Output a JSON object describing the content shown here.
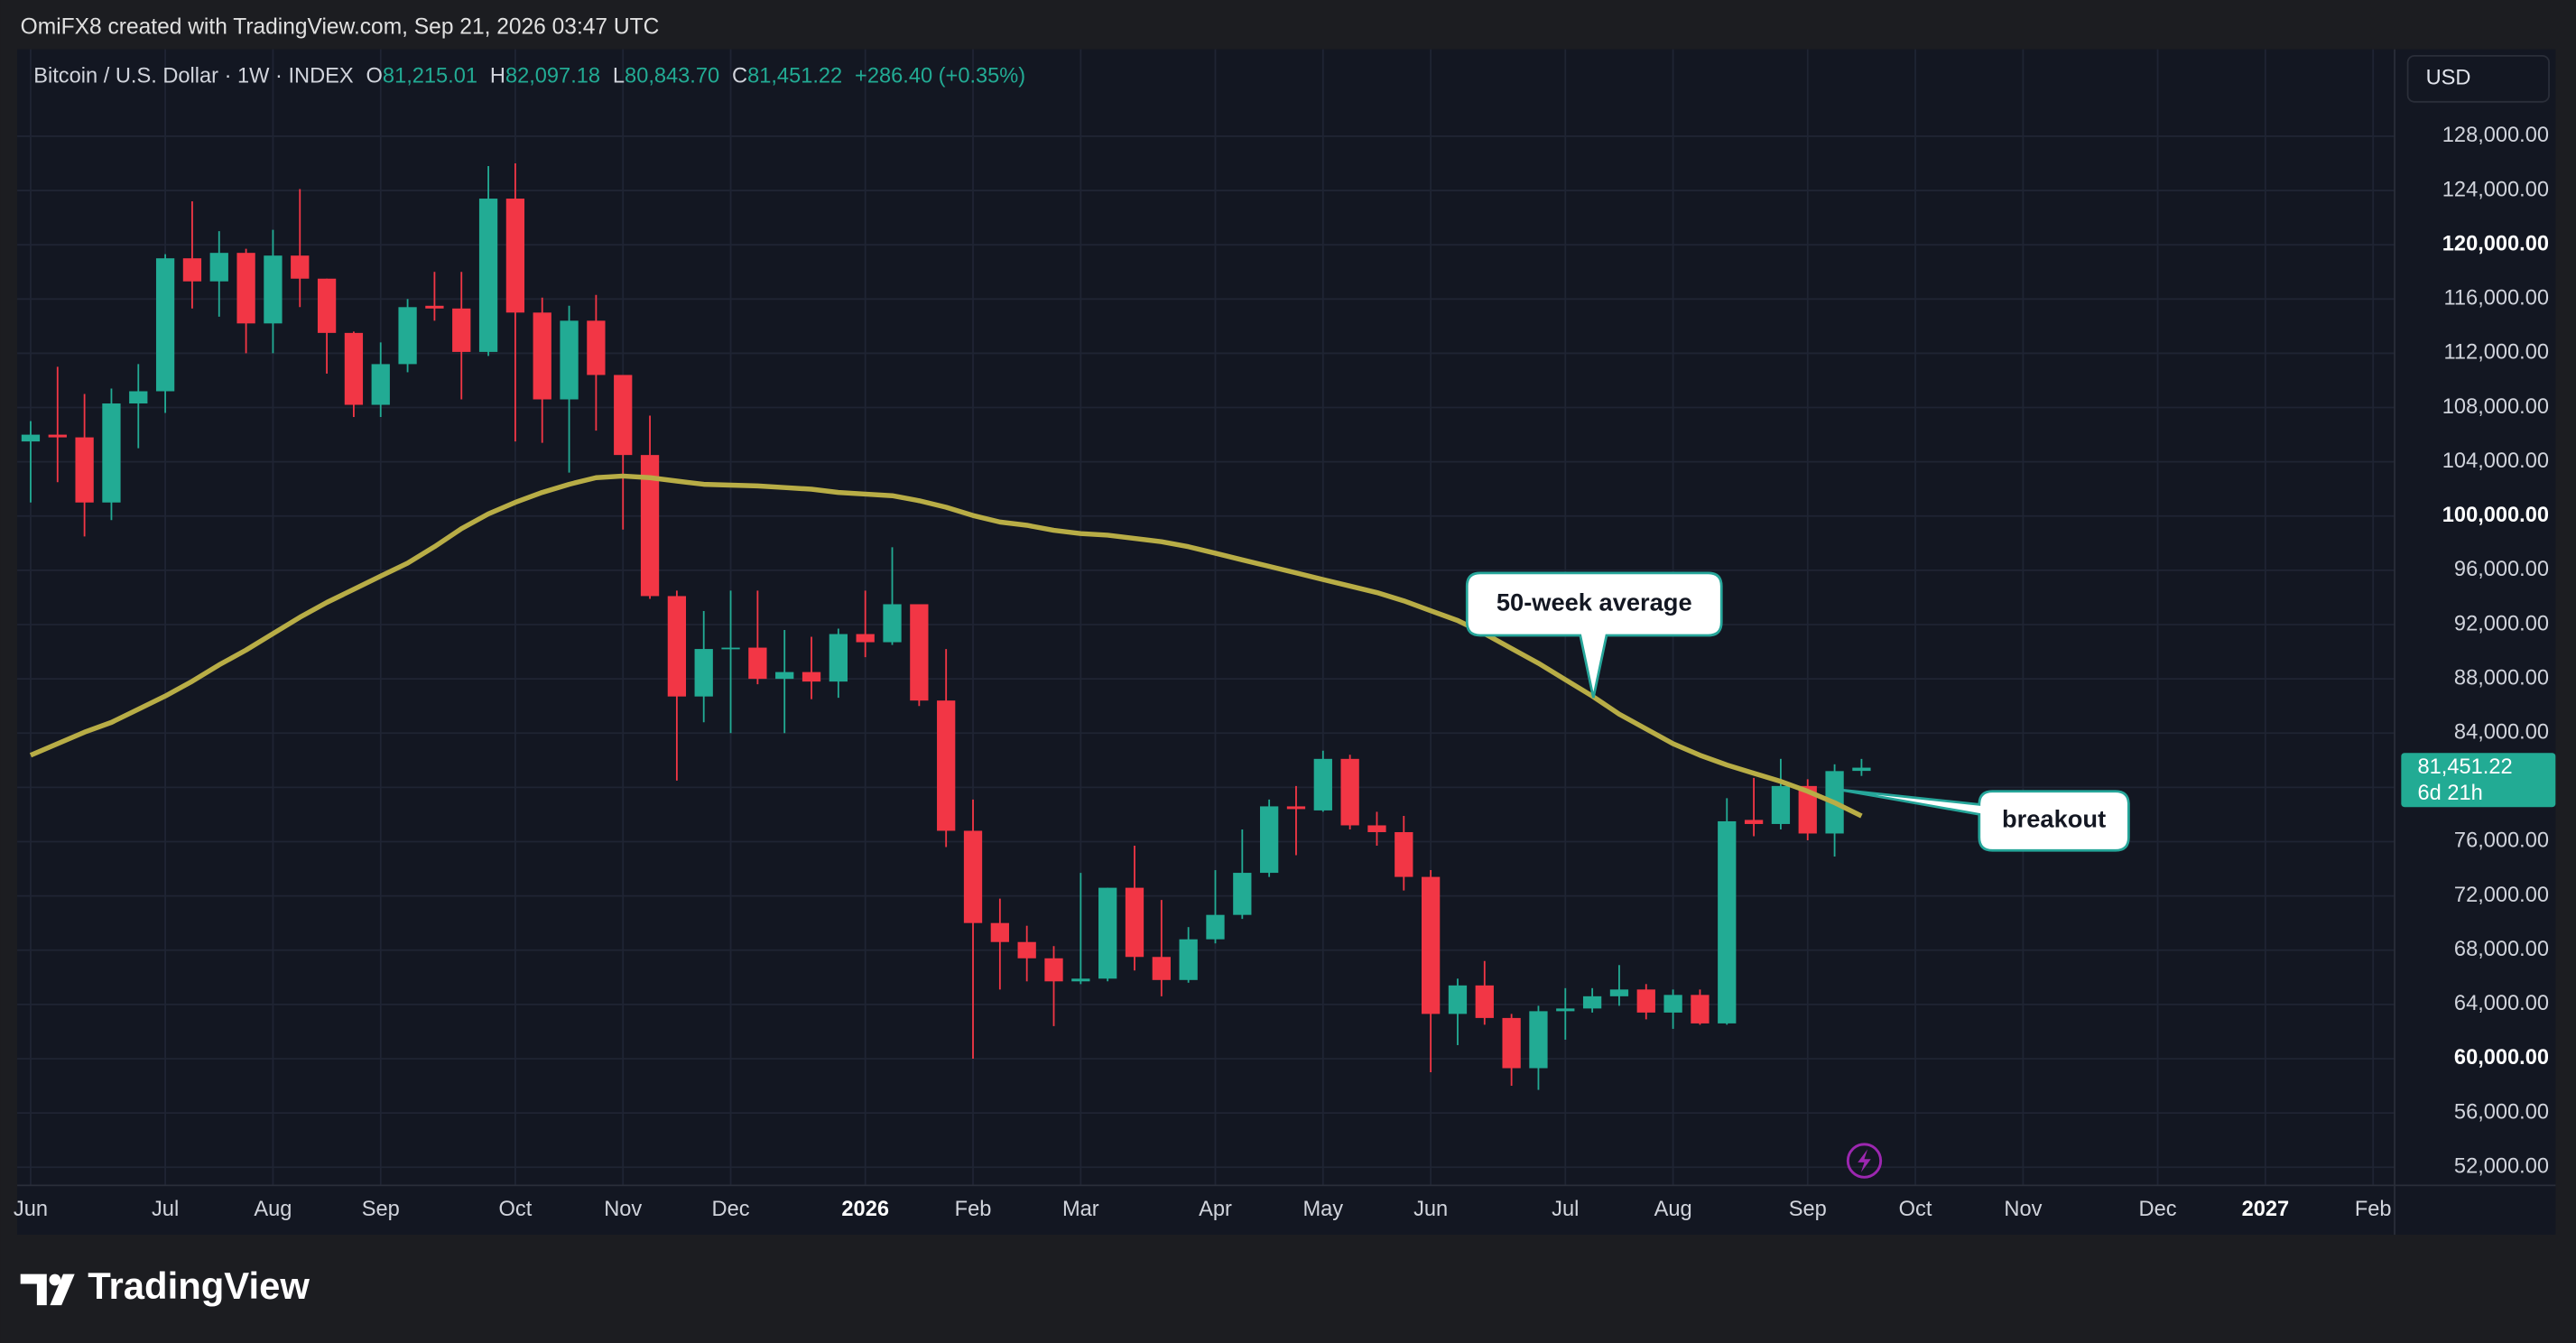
{
  "header": {
    "credit": "OmiFX8 created with TradingView.com, Sep 21, 2026 03:47 UTC"
  },
  "footer": {
    "brand": "TradingView"
  },
  "chart_data": {
    "type": "candlestick",
    "symbol": "Bitcoin / U.S. Dollar · 1W · INDEX",
    "ohlc_legend": {
      "o_label": "O",
      "open": "81,215.01",
      "h_label": "H",
      "high": "82,097.18",
      "l_label": "L",
      "low": "80,843.70",
      "c_label": "C",
      "close": "81,451.22",
      "change": "+286.40 (+0.35%)"
    },
    "currency": "USD",
    "last_price_label": "81,451.22",
    "countdown": "6d 21h",
    "up_color": "#22ab94",
    "down_color": "#f23645",
    "open": [
      105500,
      106000,
      105800,
      101000,
      108300,
      109200,
      119000,
      117300,
      119400,
      114200,
      119200,
      117500,
      113500,
      108200,
      111200,
      115500,
      115300,
      112100,
      123400,
      115000,
      108600,
      114400,
      110400,
      104500,
      94100,
      86700,
      90200,
      90300,
      88000,
      88500,
      87800,
      91300,
      90700,
      93500,
      86400,
      76800,
      70000,
      68600,
      67400,
      65700,
      65900,
      72600,
      67500,
      65800,
      68800,
      70600,
      73700,
      78600,
      78300,
      82100,
      77200,
      76700,
      73400,
      63300,
      65400,
      63000,
      59300,
      63500,
      63700,
      64600,
      65100,
      63400,
      64700,
      62600,
      77600,
      77300,
      80100,
      76600,
      81215.01
    ],
    "high": [
      107000,
      111000,
      109000,
      109400,
      111200,
      119300,
      123200,
      121000,
      119700,
      121100,
      124100,
      117500,
      113600,
      112800,
      116000,
      118000,
      118000,
      125800,
      126000,
      116100,
      115500,
      116300,
      110400,
      107400,
      94500,
      93000,
      94500,
      94500,
      91600,
      91100,
      91700,
      94500,
      97700,
      93500,
      90200,
      79100,
      71800,
      69800,
      68300,
      73700,
      72600,
      75700,
      71700,
      69700,
      73900,
      76900,
      79100,
      80100,
      82700,
      82400,
      78200,
      77900,
      73900,
      65900,
      67200,
      63300,
      63900,
      65200,
      65200,
      66900,
      65500,
      65100,
      65100,
      79200,
      80700,
      82100,
      80600,
      81700,
      82097.18
    ],
    "low": [
      101000,
      102500,
      98500,
      99700,
      105000,
      107600,
      115300,
      114700,
      112000,
      112000,
      115400,
      110500,
      107300,
      107300,
      110600,
      114400,
      108600,
      111800,
      105500,
      105400,
      103200,
      106300,
      99000,
      93900,
      80500,
      84800,
      84000,
      87600,
      84000,
      86500,
      86600,
      89600,
      90500,
      86000,
      75600,
      60000,
      65100,
      65700,
      62400,
      65500,
      65700,
      66500,
      64600,
      65600,
      68500,
      70300,
      73400,
      75000,
      78200,
      76900,
      75700,
      72400,
      59000,
      61000,
      62500,
      58000,
      57700,
      61400,
      63400,
      63900,
      62900,
      62200,
      62500,
      62500,
      76400,
      76900,
      76100,
      74900,
      80843.7
    ],
    "close": [
      106000,
      105800,
      101000,
      108300,
      109200,
      119000,
      117300,
      119400,
      114200,
      119200,
      117500,
      113500,
      108200,
      111200,
      115400,
      115300,
      112100,
      123400,
      115000,
      108600,
      114400,
      110400,
      104500,
      94100,
      86700,
      90200,
      90300,
      88000,
      88500,
      87800,
      91300,
      90700,
      93500,
      86400,
      76800,
      70000,
      68600,
      67400,
      65700,
      65900,
      72600,
      67500,
      65800,
      68800,
      70600,
      73700,
      78600,
      78400,
      82100,
      77200,
      76700,
      73400,
      63300,
      65400,
      63000,
      59300,
      63500,
      63700,
      64600,
      65100,
      63400,
      64700,
      62600,
      77500,
      77300,
      80100,
      76600,
      81200,
      81451.22
    ],
    "moving_average": {
      "color": "#b8ad46",
      "values": [
        82370,
        83220,
        84070,
        84790,
        85760,
        86730,
        87820,
        89030,
        90120,
        91330,
        92540,
        93630,
        94600,
        95570,
        96530,
        97740,
        99070,
        100160,
        101010,
        101740,
        102340,
        102830,
        102950,
        102830,
        102580,
        102340,
        102280,
        102220,
        102100,
        101980,
        101740,
        101620,
        101500,
        101130,
        100650,
        100040,
        99560,
        99320,
        98950,
        98710,
        98590,
        98350,
        98110,
        97740,
        97260,
        96770,
        96290,
        95810,
        95320,
        94840,
        94360,
        93750,
        93020,
        92300,
        91330,
        90240,
        89150,
        87940,
        86730,
        85400,
        84310,
        83220,
        82370,
        81650,
        81040,
        80440,
        79710,
        78870,
        77890
      ]
    },
    "annotations": [
      {
        "text": "50-week average"
      },
      {
        "text": "breakout"
      }
    ],
    "xlim": [
      -0.5,
      87.8
    ],
    "xticks": [
      {
        "value": 0,
        "label": "Jun"
      },
      {
        "value": 5,
        "label": "Jul"
      },
      {
        "value": 9,
        "label": "Aug"
      },
      {
        "value": 13,
        "label": "Sep"
      },
      {
        "value": 18,
        "label": "Oct"
      },
      {
        "value": 22,
        "label": "Nov"
      },
      {
        "value": 26,
        "label": "Dec"
      },
      {
        "value": 31,
        "label": "2026",
        "bold": true
      },
      {
        "value": 35,
        "label": "Feb"
      },
      {
        "value": 39,
        "label": "Mar"
      },
      {
        "value": 44,
        "label": "Apr"
      },
      {
        "value": 48,
        "label": "May"
      },
      {
        "value": 52,
        "label": "Jun"
      },
      {
        "value": 57,
        "label": "Jul"
      },
      {
        "value": 61,
        "label": "Aug"
      },
      {
        "value": 66,
        "label": "Sep"
      },
      {
        "value": 70,
        "label": "Oct"
      },
      {
        "value": 74,
        "label": "Nov"
      },
      {
        "value": 79,
        "label": "Dec"
      },
      {
        "value": 83,
        "label": "2027",
        "bold": true
      },
      {
        "value": 87,
        "label": "Feb"
      }
    ],
    "ylim": [
      50660,
      134410
    ],
    "yticks": [
      {
        "value": 52000,
        "label": "52,000.00"
      },
      {
        "value": 56000,
        "label": "56,000.00"
      },
      {
        "value": 60000,
        "label": "60,000.00",
        "bold": true
      },
      {
        "value": 64000,
        "label": "64,000.00"
      },
      {
        "value": 68000,
        "label": "68,000.00"
      },
      {
        "value": 72000,
        "label": "72,000.00"
      },
      {
        "value": 76000,
        "label": "76,000.00"
      },
      {
        "value": 80000,
        "label": "80,000.00"
      },
      {
        "value": 84000,
        "label": "84,000.00"
      },
      {
        "value": 88000,
        "label": "88,000.00"
      },
      {
        "value": 92000,
        "label": "92,000.00"
      },
      {
        "value": 96000,
        "label": "96,000.00"
      },
      {
        "value": 100000,
        "label": "100,000.00",
        "bold": true
      },
      {
        "value": 104000,
        "label": "104,000.00"
      },
      {
        "value": 108000,
        "label": "108,000.00"
      },
      {
        "value": 112000,
        "label": "112,000.00"
      },
      {
        "value": 116000,
        "label": "116,000.00"
      },
      {
        "value": 120000,
        "label": "120,000.00",
        "bold": true
      },
      {
        "value": 124000,
        "label": "124,000.00"
      },
      {
        "value": 128000,
        "label": "128,000.00"
      }
    ],
    "grid": true
  }
}
